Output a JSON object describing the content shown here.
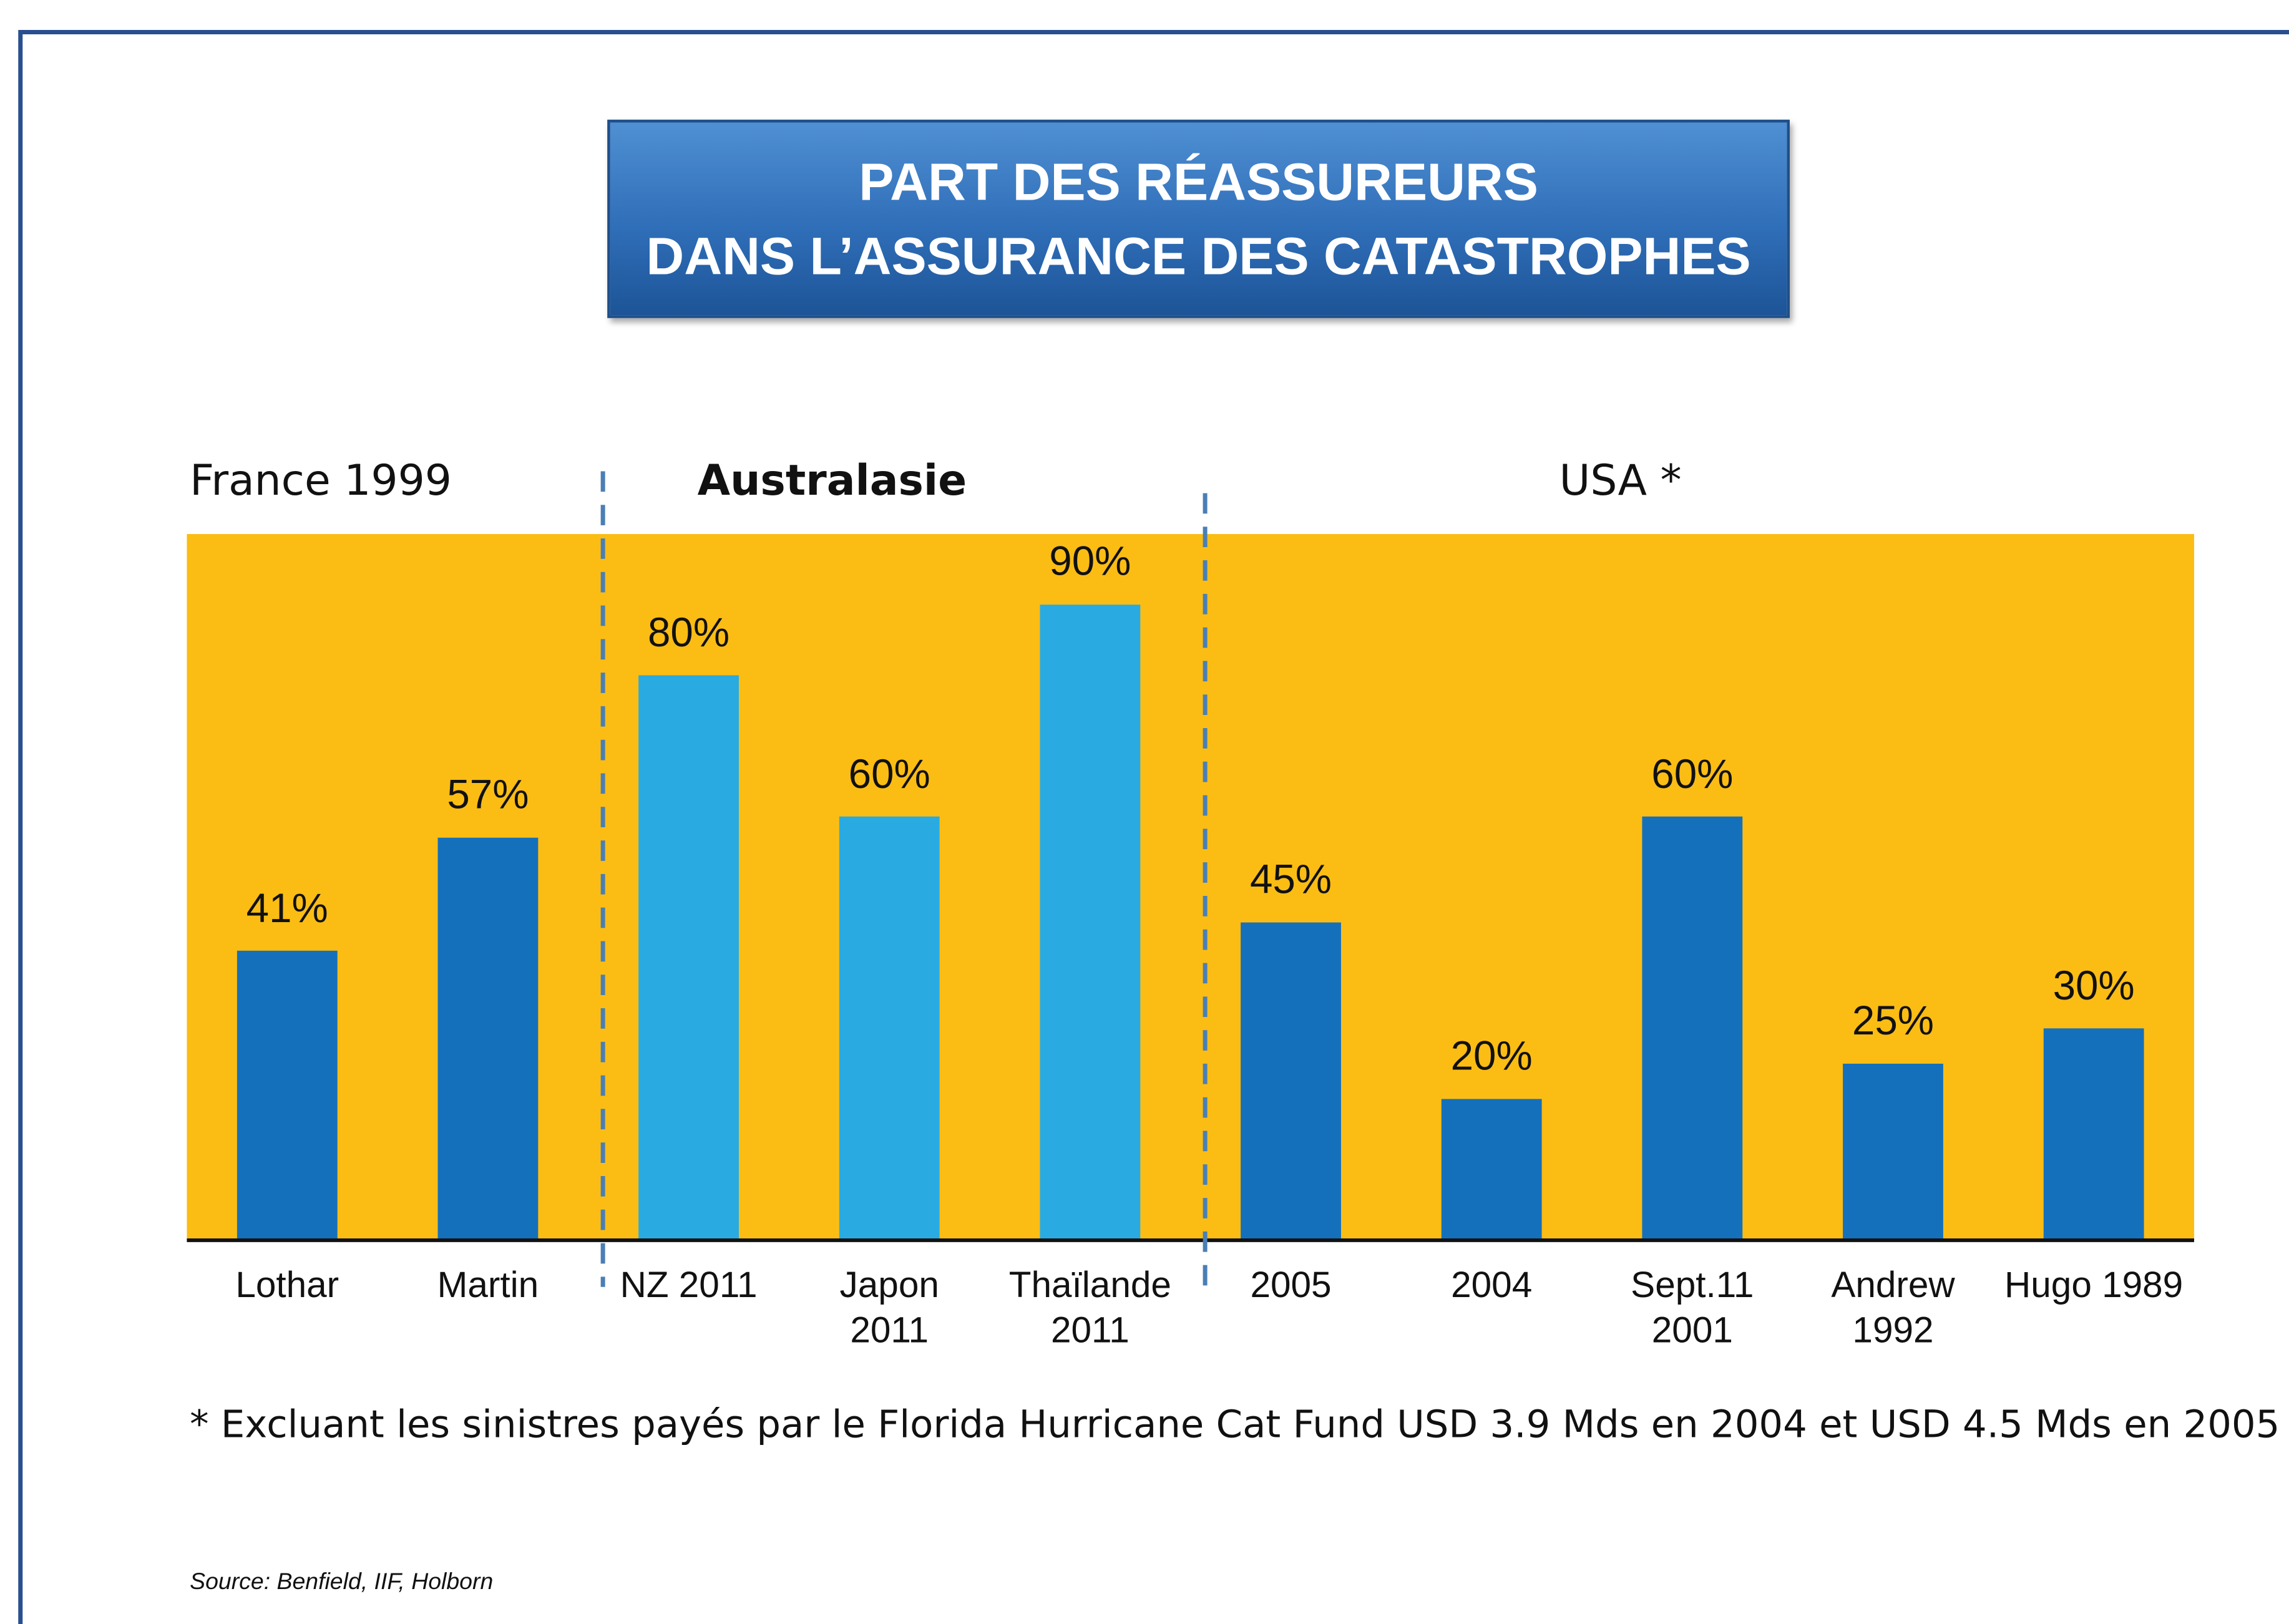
{
  "chart_data": {
    "type": "bar",
    "title": [
      "PART DES RÉASSUREURS",
      "DANS L’ASSURANCE DES CATASTROPHES"
    ],
    "groups": [
      "France 1999",
      "Australasie",
      "USA *"
    ],
    "categories": [
      "Lothar",
      "Martin",
      "NZ 2011",
      "Japon\n2011",
      "Thaïlande\n2011",
      "2005",
      "2004",
      "Sept.11\n2001",
      "Andrew\n1992",
      "Hugo 1989"
    ],
    "values": [
      41,
      57,
      80,
      60,
      90,
      45,
      20,
      60,
      25,
      30
    ],
    "value_labels": [
      "41%",
      "57%",
      "80%",
      "60%",
      "90%",
      "45%",
      "20%",
      "60%",
      "25%",
      "30%"
    ],
    "colors": [
      "#1570bb",
      "#1570bb",
      "#29abe2",
      "#29abe2",
      "#29abe2",
      "#1570bb",
      "#1570bb",
      "#1570bb",
      "#1570bb",
      "#1570bb"
    ],
    "background": "#fbbd14",
    "ylim": [
      0,
      100
    ],
    "footnote": "* Excluant les sinistres payés par le Florida Hurricane Cat Fund USD 3.9 Mds en 2004 et USD 4.5 Mds en 2005",
    "source": "Source: Benfield, IIF, Holborn"
  }
}
